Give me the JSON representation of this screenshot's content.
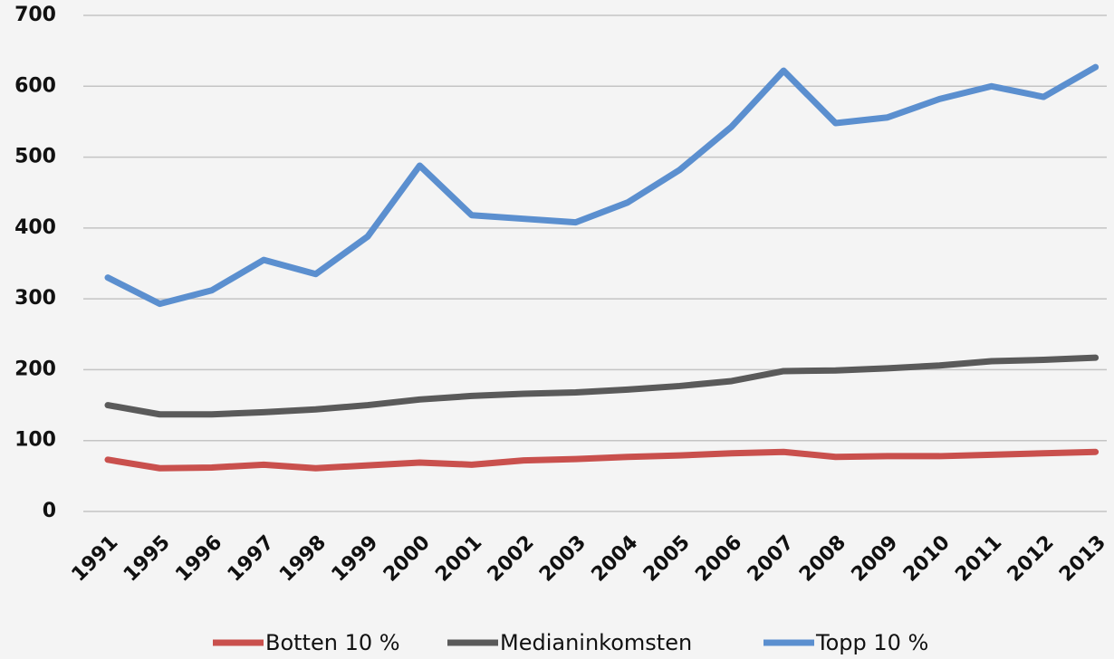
{
  "chart_data": {
    "type": "line",
    "categories": [
      "1991",
      "1995",
      "1996",
      "1997",
      "1998",
      "1999",
      "2000",
      "2001",
      "2002",
      "2003",
      "2004",
      "2005",
      "2006",
      "2007",
      "2008",
      "2009",
      "2010",
      "2011",
      "2012",
      "2013"
    ],
    "series": [
      {
        "name": "Botten 10 %",
        "color": "#c9504d",
        "values": [
          73,
          61,
          62,
          66,
          61,
          65,
          69,
          66,
          72,
          74,
          77,
          79,
          82,
          84,
          77,
          78,
          78,
          80,
          82,
          84
        ]
      },
      {
        "name": "Medianinkomsten",
        "color": "#5a5a5a",
        "values": [
          150,
          137,
          137,
          140,
          144,
          150,
          158,
          163,
          166,
          168,
          172,
          177,
          184,
          198,
          199,
          202,
          206,
          212,
          214,
          217
        ]
      },
      {
        "name": "Topp 10 %",
        "color": "#5b8fcf",
        "values": [
          330,
          293,
          312,
          355,
          335,
          388,
          488,
          418,
          413,
          408,
          436,
          482,
          543,
          622,
          548,
          556,
          582,
          600,
          585,
          627
        ]
      }
    ],
    "ylim": [
      0,
      700
    ],
    "yticks": [
      0,
      100,
      200,
      300,
      400,
      500,
      600,
      700
    ],
    "grid": true,
    "legend": "bottom"
  }
}
